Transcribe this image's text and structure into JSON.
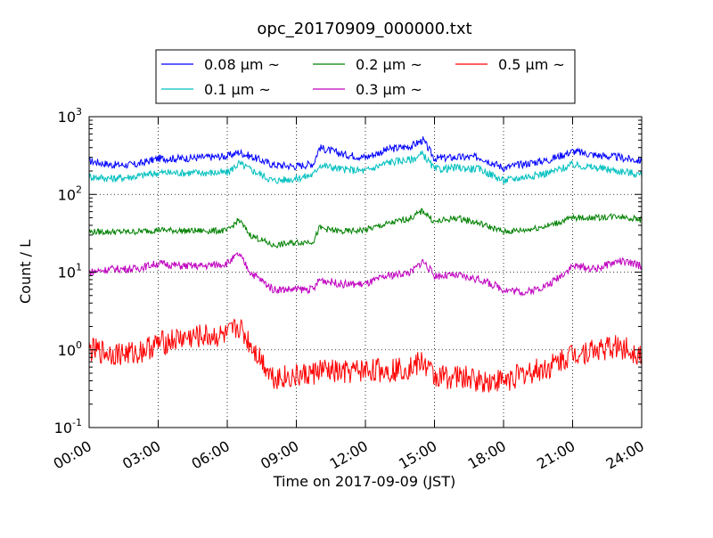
{
  "chart_data": {
    "type": "line",
    "title": "opc_20170909_000000.txt",
    "xlabel": "Time on 2017-09-09 (JST)",
    "ylabel": "Count / L",
    "xlim": [
      "2017-09-09 00:00",
      "2017-09-10 00:00"
    ],
    "ylim": [
      0.1,
      1000
    ],
    "yscale": "log",
    "grid": true,
    "legend_placement": "top-center",
    "x_tick_labels": [
      "00:00",
      "03:00",
      "06:00",
      "09:00",
      "12:00",
      "15:00",
      "18:00",
      "21:00",
      "24:00"
    ],
    "y_tick_labels": [
      {
        "base": "10",
        "exp": "-1"
      },
      {
        "base": "10",
        "exp": "0"
      },
      {
        "base": "10",
        "exp": "1"
      },
      {
        "base": "10",
        "exp": "2"
      },
      {
        "base": "10",
        "exp": "3"
      }
    ],
    "x": [
      "00:00",
      "01:00",
      "02:00",
      "03:00",
      "04:00",
      "05:00",
      "06:00",
      "06:30",
      "07:00",
      "08:00",
      "09:00",
      "09:45",
      "10:00",
      "11:00",
      "12:00",
      "13:00",
      "14:00",
      "14:30",
      "15:00",
      "16:00",
      "17:00",
      "18:00",
      "19:00",
      "20:00",
      "21:00",
      "22:00",
      "23:00",
      "24:00"
    ],
    "series": [
      {
        "name": "0.08 μm ~",
        "color": "#0000ff",
        "noise": 0.05,
        "values": [
          270,
          240,
          240,
          290,
          290,
          300,
          310,
          350,
          310,
          240,
          230,
          250,
          400,
          330,
          300,
          380,
          420,
          500,
          290,
          300,
          300,
          220,
          250,
          280,
          360,
          320,
          300,
          270
        ]
      },
      {
        "name": "0.1 μm ~",
        "color": "#00bfbf",
        "noise": 0.05,
        "values": [
          170,
          160,
          170,
          190,
          190,
          190,
          190,
          250,
          210,
          150,
          160,
          180,
          240,
          210,
          200,
          260,
          280,
          330,
          210,
          220,
          210,
          150,
          170,
          190,
          240,
          220,
          200,
          180
        ]
      },
      {
        "name": "0.2 μm ~",
        "color": "#008000",
        "noise": 0.04,
        "values": [
          33,
          33,
          33,
          35,
          34,
          34,
          34,
          47,
          30,
          22,
          24,
          25,
          37,
          33,
          35,
          42,
          50,
          62,
          44,
          50,
          42,
          33,
          35,
          40,
          50,
          50,
          53,
          47
        ]
      },
      {
        "name": "0.3 μm ~",
        "color": "#bf00bf",
        "noise": 0.05,
        "values": [
          10,
          11,
          11,
          13,
          12,
          12,
          13,
          17,
          10,
          6,
          6,
          6,
          8,
          7,
          7,
          9,
          10,
          14,
          9,
          9,
          8,
          6,
          5.5,
          7,
          12,
          11,
          14,
          12
        ]
      },
      {
        "name": "0.5 μm ~",
        "color": "#ff0000",
        "noise": 0.16,
        "values": [
          1,
          0.9,
          0.9,
          1.2,
          1.4,
          1.5,
          1.5,
          2,
          1.2,
          0.45,
          0.45,
          0.5,
          0.55,
          0.5,
          0.55,
          0.55,
          0.6,
          0.7,
          0.45,
          0.45,
          0.4,
          0.4,
          0.5,
          0.6,
          0.9,
          1,
          1.1,
          0.9
        ]
      }
    ]
  }
}
